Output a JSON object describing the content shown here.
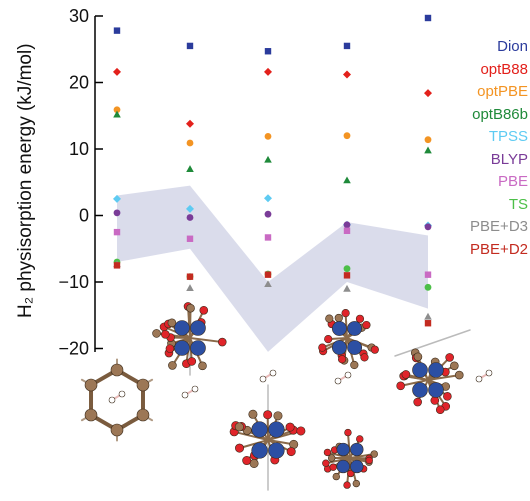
{
  "chart_data": {
    "type": "scatter",
    "title": "",
    "xlabel": "",
    "ylabel": "H₂ physisorption energy (kJ/mol)",
    "ylim": [
      -21,
      31
    ],
    "yticks": [
      30,
      20,
      10,
      0,
      -10,
      -20
    ],
    "ytick_labels": [
      "30",
      "20",
      "10",
      "0",
      "−10",
      "−20"
    ],
    "legend_position": "right",
    "x": [
      1,
      2,
      3,
      4,
      5
    ],
    "band": {
      "color": "#d4d6e8",
      "upper": [
        3,
        4.5,
        -10,
        -1,
        -3
      ],
      "lower": [
        -7,
        -5,
        -20.5,
        -10,
        -14
      ]
    },
    "series": [
      {
        "name": "Dion",
        "color": "#2b3b9c",
        "marker": "square",
        "values": [
          27.8,
          25.5,
          24.7,
          25.5,
          29.7
        ]
      },
      {
        "name": "optB88",
        "color": "#e3201b",
        "marker": "diamond",
        "values": [
          21.6,
          13.8,
          21.6,
          21.2,
          18.4
        ]
      },
      {
        "name": "optPBE",
        "color": "#f39423",
        "marker": "circle",
        "values": [
          15.9,
          10.9,
          11.9,
          12.0,
          11.4
        ]
      },
      {
        "name": "optB86b",
        "color": "#1f8a3a",
        "marker": "triangle",
        "values": [
          15.2,
          7.0,
          8.4,
          5.3,
          9.8
        ]
      },
      {
        "name": "TPSS",
        "color": "#5ecbf2",
        "marker": "diamond",
        "values": [
          2.5,
          1.0,
          2.6,
          -1.4,
          -1.5
        ]
      },
      {
        "name": "BLYP",
        "color": "#7a3c98",
        "marker": "circle",
        "values": [
          0.4,
          -0.3,
          0.2,
          -1.4,
          -1.7
        ]
      },
      {
        "name": "PBE",
        "color": "#c96ac3",
        "marker": "square",
        "values": [
          -2.5,
          -3.5,
          -3.3,
          -2.3,
          -8.9
        ]
      },
      {
        "name": "TS",
        "color": "#4cbf48",
        "marker": "circle",
        "values": [
          -7.0,
          -9.2,
          -8.8,
          -8.0,
          -10.8
        ]
      },
      {
        "name": "PBE+D3",
        "color": "#8d8d8d",
        "marker": "triangle",
        "values": [
          -7.3,
          -10.9,
          -10.3,
          -11.0,
          -15.2
        ]
      },
      {
        "name": "PBE+D2",
        "color": "#c32b20",
        "marker": "square",
        "values": [
          -7.5,
          -9.2,
          -8.9,
          -9.0,
          -16.2
        ]
      }
    ]
  },
  "colors": {
    "oxygen": "#e0242a",
    "metal": "#2c4fa3",
    "carbon": "#9c7756",
    "hydrogen": "#e8b9b7"
  }
}
